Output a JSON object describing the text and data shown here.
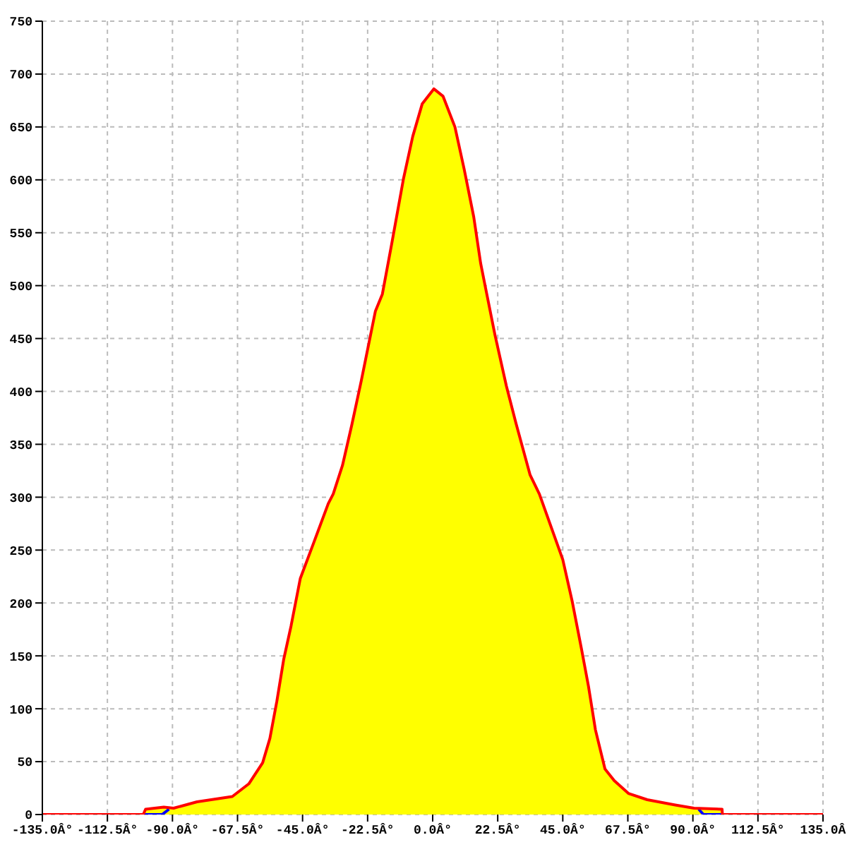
{
  "chart_data": {
    "type": "area",
    "xlim": [
      -135,
      135
    ],
    "xticks": [
      {
        "value": -135,
        "label": "-135.0Â°"
      },
      {
        "value": -112.5,
        "label": "-112.5Â°"
      },
      {
        "value": -90,
        "label": "-90.0Â°"
      },
      {
        "value": -67.5,
        "label": "-67.5Â°"
      },
      {
        "value": -45,
        "label": "-45.0Â°"
      },
      {
        "value": -22.5,
        "label": "-22.5Â°"
      },
      {
        "value": 0,
        "label": "0.0Â°"
      },
      {
        "value": 22.5,
        "label": "22.5Â°"
      },
      {
        "value": 45,
        "label": "45.0Â°"
      },
      {
        "value": 67.5,
        "label": "67.5Â°"
      },
      {
        "value": 90,
        "label": "90.0Â°"
      },
      {
        "value": 112.5,
        "label": "112.5Â°"
      },
      {
        "value": 135,
        "label": "135.0Â"
      }
    ],
    "ylim": [
      0,
      750
    ],
    "yticks": [
      0,
      50,
      100,
      150,
      200,
      250,
      300,
      350,
      400,
      450,
      500,
      550,
      600,
      650,
      700,
      750
    ],
    "grid": true,
    "series": [
      {
        "type": "area",
        "color": "#ffff00",
        "x": [
          -100.1,
          -99.3,
          -93,
          -89.6,
          -81.5,
          -69.3,
          -63.6,
          -58.8,
          -56.3,
          -53.9,
          -51.5,
          -49,
          -45.8,
          -41,
          -36.1,
          -34.4,
          -31.2,
          -28,
          -24.7,
          -19.8,
          -17.4,
          -14.2,
          -10.1,
          -6.9,
          -3.6,
          0.4,
          3.6,
          7.7,
          10.9,
          14.2,
          16.6,
          18.2,
          21.5,
          25.5,
          28.8,
          31.2,
          33.7,
          36.9,
          45,
          48.3,
          51.5,
          53.9,
          56.3,
          59.6,
          62.8,
          67.7,
          74.2,
          83.9,
          90.4,
          100.1,
          100.2
        ],
        "values": [
          0,
          5,
          7,
          6,
          12,
          17,
          29,
          49,
          72,
          107,
          147,
          178,
          223,
          258,
          294,
          303,
          330,
          368,
          410,
          476,
          492,
          539,
          601,
          641,
          672,
          686,
          679,
          650,
          610,
          565,
          521,
          499,
          454,
          405,
          370,
          346,
          321,
          303,
          241,
          201,
          156,
          121,
          80,
          43,
          32,
          20,
          14,
          9,
          6,
          5,
          0
        ]
      },
      {
        "type": "line",
        "color": "#0000ff",
        "x": [
          -100.1,
          -93.6,
          -91.2,
          0,
          92,
          93.7,
          100.1
        ],
        "values": [
          0,
          0,
          5,
          null,
          5,
          0,
          0
        ]
      },
      {
        "type": "line",
        "color": "#ff0000",
        "x": [
          -135,
          -100.1,
          -99.3,
          -93,
          -89.6,
          -81.5,
          -69.3,
          -63.6,
          -58.8,
          -56.3,
          -53.9,
          -51.5,
          -49,
          -45.8,
          -41,
          -36.1,
          -34.4,
          -31.2,
          -28,
          -24.7,
          -19.8,
          -17.4,
          -14.2,
          -10.1,
          -6.9,
          -3.6,
          0.4,
          3.6,
          7.7,
          10.9,
          14.2,
          16.6,
          18.2,
          21.5,
          25.5,
          28.8,
          31.2,
          33.7,
          36.9,
          45,
          48.3,
          51.5,
          53.9,
          56.3,
          59.6,
          62.8,
          67.7,
          74.2,
          83.9,
          90.4,
          100.1,
          100.2,
          135
        ],
        "values": [
          0,
          0,
          5,
          7,
          6,
          12,
          17,
          29,
          49,
          72,
          107,
          147,
          178,
          223,
          258,
          294,
          303,
          330,
          368,
          410,
          476,
          492,
          539,
          601,
          641,
          672,
          686,
          679,
          650,
          610,
          565,
          521,
          499,
          454,
          405,
          370,
          346,
          321,
          303,
          241,
          201,
          156,
          121,
          80,
          43,
          32,
          20,
          14,
          9,
          6,
          5,
          0,
          0
        ]
      }
    ]
  }
}
